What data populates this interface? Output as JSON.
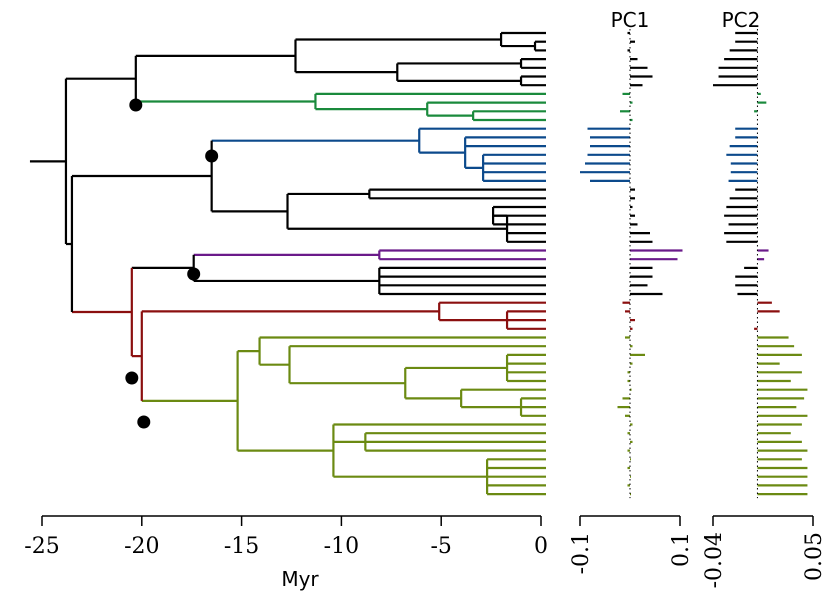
{
  "chart_data": [
    {
      "type": "tree",
      "xlabel": "Myr",
      "xlim": [
        -25,
        0
      ],
      "xticks": [
        "-25",
        "-20",
        "-15",
        "-10",
        "-5",
        "0"
      ],
      "colors": {
        "black": "#000000",
        "green": "#1a8a3c",
        "blue": "#0c4a8c",
        "purple": "#6a1a8a",
        "red": "#8b0f0f",
        "olive": "#6b8a12"
      },
      "tip_count": 54,
      "root_age": -24,
      "nodes": [
        {
          "id": "n1",
          "age": -23.8
        },
        {
          "id": "n2",
          "age": -20.3
        },
        {
          "id": "n3",
          "age": -12.3
        },
        {
          "id": "n4",
          "age": -2.0
        },
        {
          "id": "n5",
          "age": -0.3
        },
        {
          "id": "n6",
          "age": -7.2
        },
        {
          "id": "n7",
          "age": -1.0
        },
        {
          "id": "n8",
          "age": -1.0
        },
        {
          "id": "n9",
          "age": -11.3
        },
        {
          "id": "n10",
          "age": -5.7
        },
        {
          "id": "n11",
          "age": -3.4
        },
        {
          "id": "n12",
          "age": -23.5
        },
        {
          "id": "n13",
          "age": -16.5
        },
        {
          "id": "n14",
          "age": -6.1
        },
        {
          "id": "n15",
          "age": -3.8
        },
        {
          "id": "n16",
          "age": -2.9
        },
        {
          "id": "n17",
          "age": -12.7
        },
        {
          "id": "n18",
          "age": -8.6
        },
        {
          "id": "n19",
          "age": -1.7
        },
        {
          "id": "n20",
          "age": -2.4
        },
        {
          "id": "n21",
          "age": -20.5
        },
        {
          "id": "n22",
          "age": -17.4
        },
        {
          "id": "n23",
          "age": -8.1
        },
        {
          "id": "n24",
          "age": -20.0
        },
        {
          "id": "n25",
          "age": -5.1
        },
        {
          "id": "n26",
          "age": -1.7
        },
        {
          "id": "n27",
          "age": -15.2
        },
        {
          "id": "n28",
          "age": -14.1
        },
        {
          "id": "n29",
          "age": -12.6
        },
        {
          "id": "n30",
          "age": -6.8
        },
        {
          "id": "n31",
          "age": -1.7
        },
        {
          "id": "n32",
          "age": -4.0
        },
        {
          "id": "n33",
          "age": -1.0
        },
        {
          "id": "n34",
          "age": -10.4
        },
        {
          "id": "n35",
          "age": -8.8
        },
        {
          "id": "n36",
          "age": -2.7
        }
      ],
      "clade_markers": [
        {
          "clade": "green",
          "age": -20.3
        },
        {
          "clade": "blue",
          "age": -16.5
        },
        {
          "clade": "purple",
          "age": -17.4
        },
        {
          "clade": "red",
          "age": -20.5
        },
        {
          "clade": "olive",
          "age": -19.9
        }
      ]
    },
    {
      "type": "bar",
      "orientation": "horizontal",
      "title": "PC1",
      "xlim": [
        -0.1,
        0.1
      ],
      "xticks": [
        "-0.1",
        "0.1"
      ],
      "values": [
        -0.005,
        0.01,
        -0.005,
        0.015,
        0.035,
        0.045,
        0.025,
        -0.015,
        0.005,
        -0.02,
        0.005,
        -0.085,
        -0.08,
        -0.08,
        -0.085,
        -0.09,
        -0.1,
        -0.08,
        0.01,
        0.01,
        0.005,
        0.01,
        0.015,
        0.04,
        0.045,
        0.105,
        0.095,
        0.045,
        0.045,
        0.035,
        0.065,
        -0.015,
        -0.01,
        0.01,
        0.005,
        -0.01,
        0.005,
        0.03,
        0.005,
        -0.005,
        -0.005,
        0.003,
        -0.015,
        -0.025,
        -0.01,
        0.005,
        -0.005,
        0.005,
        -0.005,
        0.002,
        -0.005,
        0.002,
        -0.005,
        0.002
      ],
      "series_colors": [
        "black",
        "black",
        "black",
        "black",
        "black",
        "black",
        "black",
        "green",
        "green",
        "green",
        "green",
        "blue",
        "blue",
        "blue",
        "blue",
        "blue",
        "blue",
        "blue",
        "black",
        "black",
        "black",
        "black",
        "black",
        "black",
        "black",
        "purple",
        "purple",
        "black",
        "black",
        "black",
        "black",
        "red",
        "red",
        "red",
        "red",
        "olive",
        "olive",
        "olive",
        "olive",
        "olive",
        "olive",
        "olive",
        "olive",
        "olive",
        "olive",
        "olive",
        "olive",
        "olive",
        "olive",
        "olive",
        "olive",
        "olive",
        "olive",
        "olive"
      ]
    },
    {
      "type": "bar",
      "orientation": "horizontal",
      "title": "PC2",
      "xlim": [
        -0.04,
        0.05
      ],
      "xticks": [
        "-0.04",
        "0.05"
      ],
      "values": [
        -0.02,
        -0.02,
        -0.025,
        -0.03,
        -0.035,
        -0.035,
        -0.04,
        0.003,
        0.008,
        -0.003,
        0.0,
        -0.02,
        -0.02,
        -0.025,
        -0.028,
        -0.024,
        -0.024,
        -0.026,
        -0.02,
        -0.025,
        -0.028,
        -0.03,
        -0.026,
        -0.03,
        -0.028,
        0.01,
        0.006,
        -0.012,
        -0.02,
        -0.02,
        -0.018,
        0.013,
        0.02,
        0.0,
        -0.003,
        0.028,
        0.033,
        0.04,
        0.02,
        0.04,
        0.03,
        0.045,
        0.042,
        0.035,
        0.045,
        0.04,
        0.03,
        0.04,
        0.045,
        0.04,
        0.045,
        0.045,
        0.045,
        0.045
      ],
      "series_colors": [
        "black",
        "black",
        "black",
        "black",
        "black",
        "black",
        "black",
        "green",
        "green",
        "green",
        "green",
        "blue",
        "blue",
        "blue",
        "blue",
        "blue",
        "blue",
        "blue",
        "black",
        "black",
        "black",
        "black",
        "black",
        "black",
        "black",
        "purple",
        "purple",
        "black",
        "black",
        "black",
        "black",
        "red",
        "red",
        "red",
        "red",
        "olive",
        "olive",
        "olive",
        "olive",
        "olive",
        "olive",
        "olive",
        "olive",
        "olive",
        "olive",
        "olive",
        "olive",
        "olive",
        "olive",
        "olive",
        "olive",
        "olive",
        "olive",
        "olive"
      ]
    }
  ]
}
